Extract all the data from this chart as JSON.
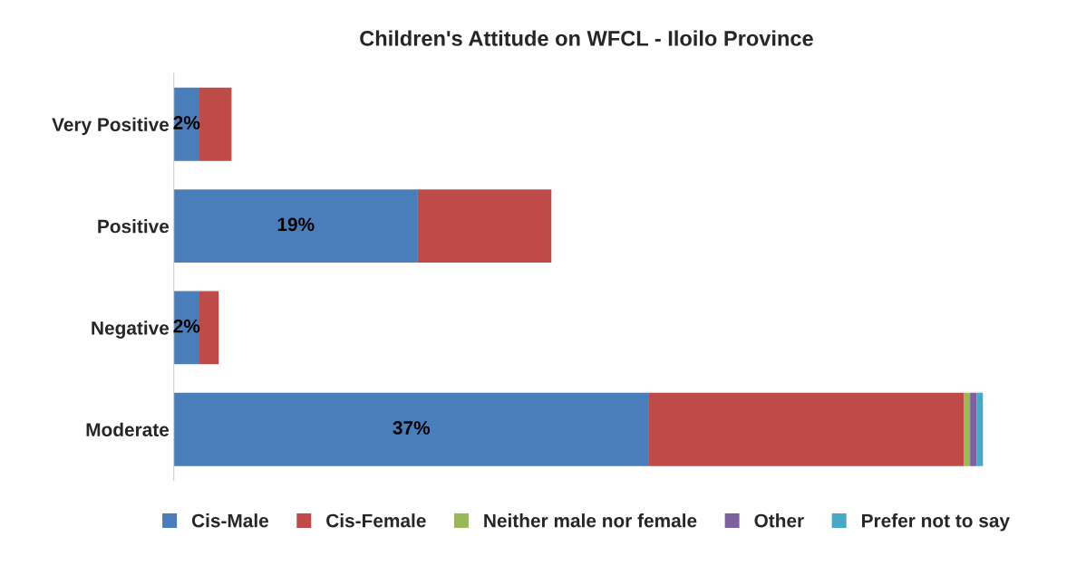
{
  "chart_data": {
    "type": "bar",
    "orientation": "horizontal",
    "stacked": true,
    "title": "Children's Attitude on WFCL - Iloilo Province",
    "categories": [
      "Very Positive",
      "Positive",
      "Negative",
      "Moderate"
    ],
    "series": [
      {
        "name": "Cis-Male",
        "color": "#4a7ebb",
        "values": [
          2,
          19,
          2,
          37
        ],
        "value_labels": [
          "2%",
          "19%",
          "2%",
          "37%"
        ]
      },
      {
        "name": "Cis-Female",
        "color": "#be4b48",
        "values": [
          2.5,
          10.4,
          1.5,
          24.5
        ]
      },
      {
        "name": "Neither male nor female",
        "color": "#98b954",
        "values": [
          null,
          null,
          null,
          0.5
        ]
      },
      {
        "name": "Other",
        "color": "#7d60a0",
        "values": [
          null,
          null,
          null,
          0.5
        ]
      },
      {
        "name": "Prefer not to say",
        "color": "#46aac5",
        "values": [
          null,
          null,
          null,
          0.5
        ]
      }
    ],
    "tick_labels": "y",
    "grid": false,
    "legend": "bottom"
  }
}
